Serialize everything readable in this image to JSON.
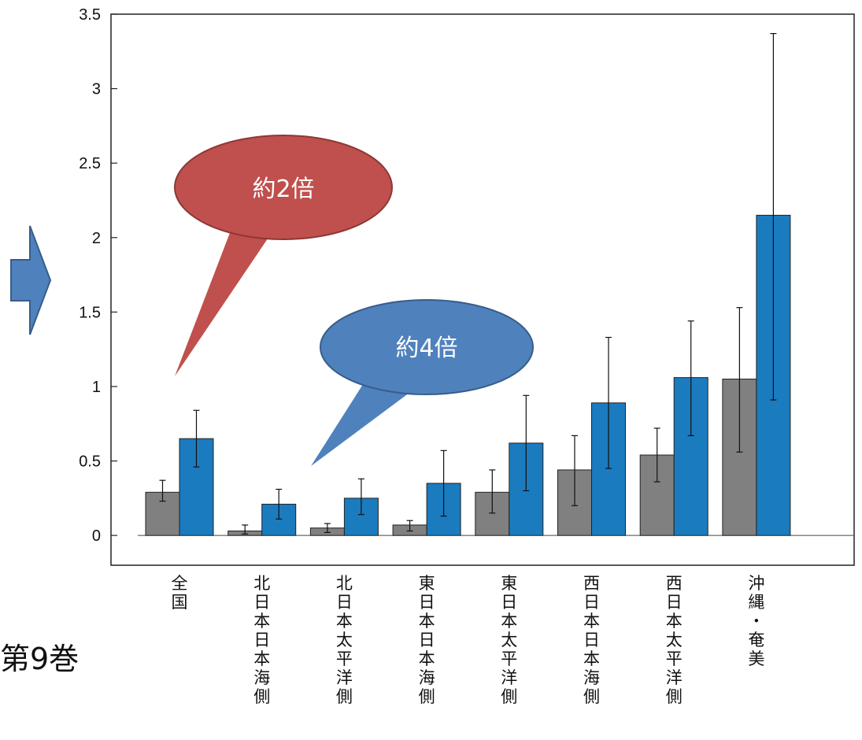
{
  "chart_data": {
    "type": "bar",
    "categories": [
      "全国",
      "北日本日本海側",
      "北日本太平洋側",
      "東日本日本海側",
      "東日本太平洋側",
      "西日本日本海側",
      "西日本太平洋側",
      "沖縄・奄美"
    ],
    "series": [
      {
        "color": "#808080",
        "values": [
          0.29,
          0.03,
          0.05,
          0.07,
          0.29,
          0.44,
          0.54,
          1.05
        ],
        "error_low": [
          0.23,
          0.01,
          0.02,
          0.03,
          0.15,
          0.2,
          0.36,
          0.56
        ],
        "error_high": [
          0.37,
          0.07,
          0.08,
          0.1,
          0.44,
          0.67,
          0.72,
          1.53
        ]
      },
      {
        "color": "#1b7bbf",
        "values": [
          0.65,
          0.21,
          0.25,
          0.35,
          0.62,
          0.89,
          1.06,
          2.15
        ],
        "error_low": [
          0.46,
          0.11,
          0.14,
          0.13,
          0.3,
          0.45,
          0.67,
          0.91
        ],
        "error_high": [
          0.84,
          0.31,
          0.38,
          0.57,
          0.94,
          1.33,
          1.44,
          3.37
        ]
      }
    ],
    "ylim": [
      -0.2,
      3.5
    ],
    "yticks": [
      "0",
      "0.5",
      "1",
      "1.5",
      "2",
      "2.5",
      "3",
      "3.5"
    ],
    "legend": "none"
  },
  "callouts": {
    "red": {
      "text": "約2倍",
      "color": "#c0504d"
    },
    "blue": {
      "text": "約4倍",
      "color": "#4f81bd"
    }
  },
  "arrow": {
    "color": "#4f81bd"
  },
  "footnote": "第9巻"
}
